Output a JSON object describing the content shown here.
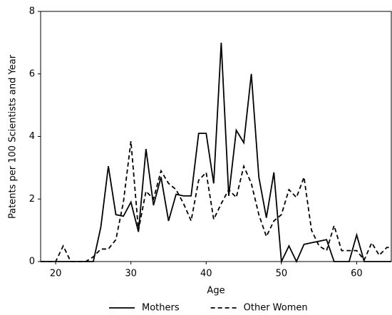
{
  "chart_data": {
    "type": "line",
    "xlabel": "Age",
    "ylabel": "Patents per 100 Scientists and Year",
    "x": [
      18,
      19,
      20,
      21,
      22,
      23,
      24,
      25,
      26,
      27,
      28,
      29,
      30,
      31,
      32,
      33,
      34,
      35,
      36,
      37,
      38,
      39,
      40,
      41,
      42,
      43,
      44,
      45,
      46,
      47,
      48,
      49,
      50,
      51,
      52,
      53,
      54,
      55,
      56,
      57,
      58,
      59,
      60,
      61,
      62,
      63,
      64,
      65
    ],
    "series": [
      {
        "name": "Mothers",
        "color": "#000000",
        "dash": "solid",
        "values": [
          0,
          0,
          0,
          0,
          0,
          0,
          0,
          0,
          1.1,
          3.05,
          1.5,
          1.45,
          1.9,
          0.95,
          3.6,
          1.8,
          2.7,
          1.3,
          2.15,
          2.1,
          2.1,
          4.1,
          4.1,
          2.5,
          7.0,
          2.1,
          4.2,
          3.8,
          6.0,
          2.7,
          1.4,
          2.85,
          0,
          0.5,
          0,
          0.55,
          0.6,
          0.65,
          0.7,
          0,
          0,
          0,
          0.85,
          0,
          0,
          0,
          0,
          0
        ]
      },
      {
        "name": "Other Women",
        "color": "#000000",
        "dash": "dashed",
        "values": [
          0,
          0,
          0,
          0.5,
          0,
          0,
          0,
          0.15,
          0.4,
          0.4,
          0.7,
          1.9,
          3.85,
          1.0,
          2.25,
          2.0,
          2.9,
          2.5,
          2.3,
          1.85,
          1.3,
          2.6,
          2.85,
          1.35,
          1.85,
          2.3,
          2.05,
          3.05,
          2.5,
          1.5,
          0.8,
          1.3,
          1.5,
          2.3,
          2.05,
          2.7,
          1.0,
          0.5,
          0.35,
          1.15,
          0.35,
          0.35,
          0.35,
          0.05,
          0.6,
          0.2,
          0.45,
          0.45
        ]
      }
    ],
    "xlim": [
      18,
      64.6
    ],
    "ylim": [
      0,
      8
    ],
    "xticks": [
      20,
      30,
      40,
      50,
      60
    ],
    "yticks": [
      0,
      2,
      4,
      6,
      8
    ],
    "legend": "bottom"
  }
}
